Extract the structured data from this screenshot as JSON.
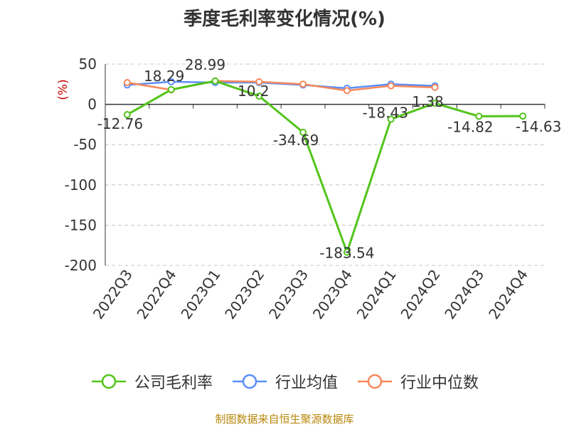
{
  "title": "季度毛利率变化情况(%)",
  "source": "制图数据来自恒生聚源数据库",
  "chart_data": {
    "type": "line",
    "title": "季度毛利率变化情况(%)",
    "ylabel": "(%)",
    "xlabel": "",
    "categories": [
      "2022Q3",
      "2022Q4",
      "2023Q1",
      "2023Q2",
      "2023Q3",
      "2023Q4",
      "2024Q1",
      "2024Q2",
      "2024Q3",
      "2024Q4"
    ],
    "ylim": [
      -200,
      50
    ],
    "yticks": [
      50,
      0,
      -50,
      -100,
      -150,
      -200
    ],
    "grid": true,
    "legend_position": "bottom",
    "series": [
      {
        "name": "公司毛利率",
        "color": "#52c41a",
        "values": [
          -12.76,
          18.29,
          28.99,
          10.2,
          -34.69,
          -183.54,
          -18.43,
          1.38,
          -14.82,
          -14.63
        ],
        "labels": [
          "-12.76",
          "18.29",
          "28.99",
          "10.2",
          "-34.69",
          "-183.54",
          "-18.43",
          "1.38",
          "-14.82",
          "-14.63"
        ]
      },
      {
        "name": "行业均值",
        "color": "#5b8ff9",
        "values": [
          24,
          28,
          27,
          27,
          24,
          20,
          25,
          23,
          null,
          null
        ]
      },
      {
        "name": "行业中位数",
        "color": "#f6875a",
        "values": [
          27,
          18,
          29,
          28,
          25,
          17,
          23,
          21,
          null,
          null
        ]
      }
    ]
  }
}
